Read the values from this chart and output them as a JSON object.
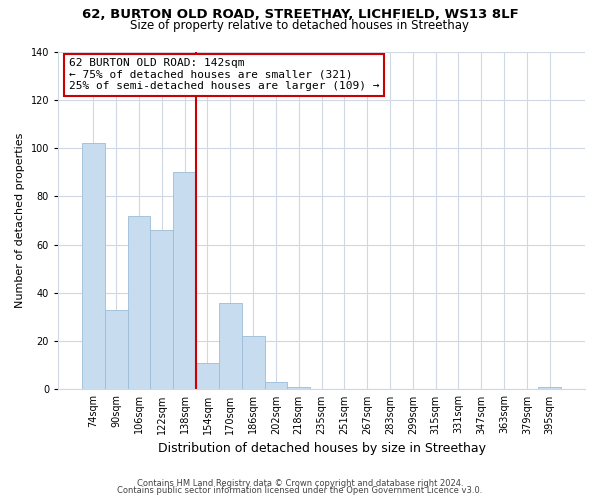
{
  "title": "62, BURTON OLD ROAD, STREETHAY, LICHFIELD, WS13 8LF",
  "subtitle": "Size of property relative to detached houses in Streethay",
  "xlabel": "Distribution of detached houses by size in Streethay",
  "ylabel": "Number of detached properties",
  "bin_labels": [
    "74sqm",
    "90sqm",
    "106sqm",
    "122sqm",
    "138sqm",
    "154sqm",
    "170sqm",
    "186sqm",
    "202sqm",
    "218sqm",
    "235sqm",
    "251sqm",
    "267sqm",
    "283sqm",
    "299sqm",
    "315sqm",
    "331sqm",
    "347sqm",
    "363sqm",
    "379sqm",
    "395sqm"
  ],
  "bar_heights": [
    102,
    33,
    72,
    66,
    90,
    11,
    36,
    22,
    3,
    1,
    0,
    0,
    0,
    0,
    0,
    0,
    0,
    0,
    0,
    0,
    1
  ],
  "bar_color": "#c8dcef",
  "bar_edge_color": "#9bbcd8",
  "vline_x": 4.5,
  "vline_color": "#cc0000",
  "annotation_line1": "62 BURTON OLD ROAD: 142sqm",
  "annotation_line2": "← 75% of detached houses are smaller (321)",
  "annotation_line3": "25% of semi-detached houses are larger (109) →",
  "annotation_box_color": "#ffffff",
  "annotation_box_edge": "#cc0000",
  "ylim": [
    0,
    140
  ],
  "yticks": [
    0,
    20,
    40,
    60,
    80,
    100,
    120,
    140
  ],
  "footnote1": "Contains HM Land Registry data © Crown copyright and database right 2024.",
  "footnote2": "Contains public sector information licensed under the Open Government Licence v3.0.",
  "background_color": "#ffffff",
  "grid_color": "#d0d8e4",
  "title_fontsize": 9.5,
  "subtitle_fontsize": 8.5,
  "ylabel_fontsize": 8,
  "xlabel_fontsize": 9,
  "tick_fontsize": 7,
  "annot_fontsize": 8,
  "footnote_fontsize": 6
}
